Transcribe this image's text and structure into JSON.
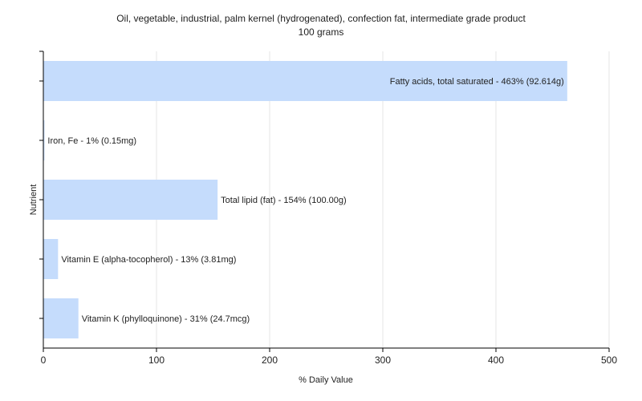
{
  "chart_data": {
    "type": "bar",
    "orientation": "horizontal",
    "title": "Oil, vegetable, industrial, palm kernel (hydrogenated), confection fat, intermediate grade product",
    "subtitle": "100 grams",
    "xlabel": "% Daily Value",
    "ylabel": "Nutrient",
    "xlim": [
      0,
      500
    ],
    "xticks": [
      0,
      100,
      200,
      300,
      400,
      500
    ],
    "grid": true,
    "bar_color": "#c5dcfc",
    "categories": [
      "Fatty acids, total saturated",
      "Iron, Fe",
      "Total lipid (fat)",
      "Vitamin E (alpha-tocopherol)",
      "Vitamin K (phylloquinone)"
    ],
    "values": [
      463,
      1,
      154,
      13,
      31
    ],
    "labels": [
      "Fatty acids, total saturated - 463% (92.614g)",
      "Iron, Fe - 1% (0.15mg)",
      "Total lipid (fat) - 154% (100.00g)",
      "Vitamin E (alpha-tocopherol) - 13% (3.81mg)",
      "Vitamin K (phylloquinone) - 31% (24.7mcg)"
    ]
  }
}
